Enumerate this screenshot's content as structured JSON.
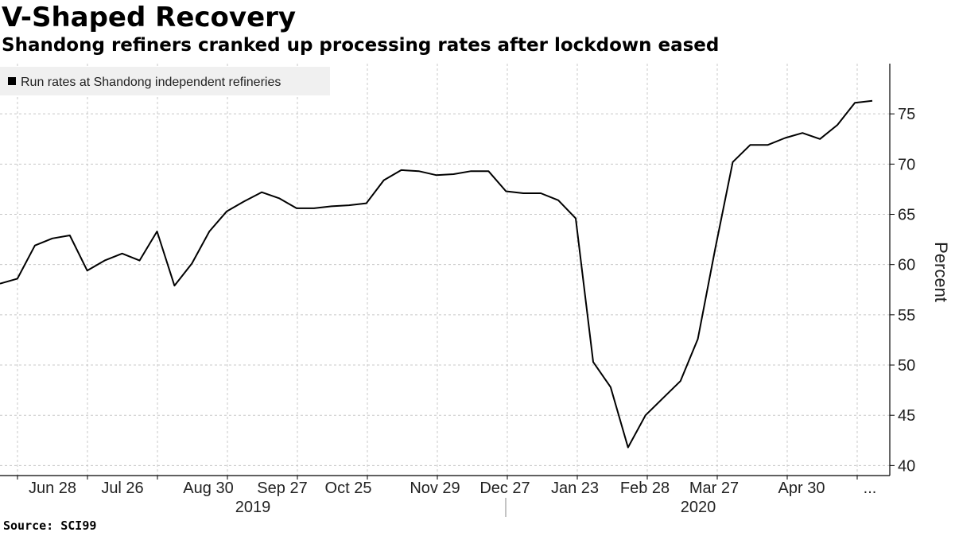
{
  "title": "V-Shaped Recovery",
  "subtitle": "Shandong refiners cranked up processing rates after lockdown eased",
  "source": "Source: SCI99",
  "chart_data": {
    "type": "line",
    "title": "V-Shaped Recovery",
    "subtitle": "Shandong refiners cranked up processing rates after lockdown eased",
    "ylabel": "Percent",
    "ylim": [
      39,
      80
    ],
    "y_ticks": [
      40,
      45,
      50,
      55,
      60,
      65,
      70,
      75
    ],
    "grid": true,
    "legend_position": "top-left",
    "x_tick_labels": [
      "Jun 28",
      "Jul 26",
      "Aug 30",
      "Sep 27",
      "Oct 25",
      "Nov 29",
      "Dec 27",
      "Jan 23",
      "Feb 28",
      "Mar 27",
      "Apr 30",
      "..."
    ],
    "year_labels": [
      "2019",
      "2020"
    ],
    "series": [
      {
        "name": "Run rates at Shandong independent refineries",
        "color": "#000000",
        "values": [
          58.1,
          58.6,
          61.9,
          62.6,
          62.9,
          59.4,
          60.4,
          61.1,
          60.4,
          63.3,
          57.9,
          60.1,
          63.3,
          65.3,
          66.3,
          67.2,
          66.6,
          65.6,
          65.6,
          65.8,
          65.9,
          66.1,
          68.4,
          69.4,
          69.3,
          68.9,
          69.0,
          69.3,
          69.3,
          67.3,
          67.1,
          67.1,
          66.4,
          64.6,
          50.3,
          47.8,
          41.8,
          45.0,
          46.7,
          48.4,
          52.6,
          61.6,
          70.2,
          71.9,
          71.9,
          72.6,
          73.1,
          72.5,
          73.9,
          76.1,
          76.3
        ]
      }
    ]
  }
}
